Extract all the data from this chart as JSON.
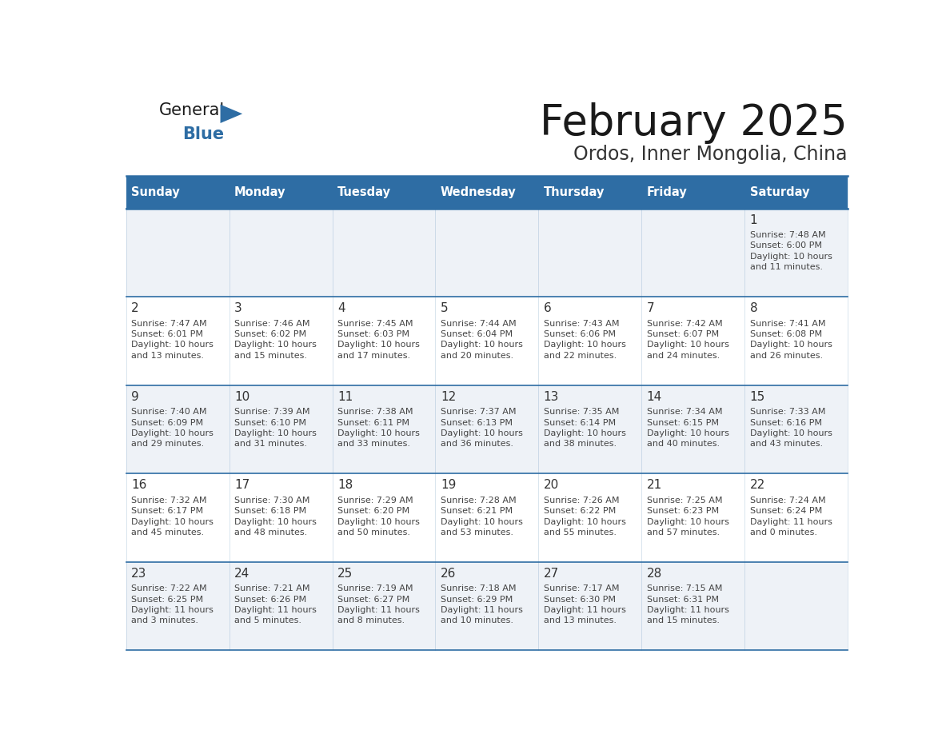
{
  "title": "February 2025",
  "subtitle": "Ordos, Inner Mongolia, China",
  "header_bg": "#2E6DA4",
  "header_text_color": "#FFFFFF",
  "cell_bg_odd": "#EEF2F7",
  "cell_bg_even": "#FFFFFF",
  "grid_line_color": "#2E6DA4",
  "day_headers": [
    "Sunday",
    "Monday",
    "Tuesday",
    "Wednesday",
    "Thursday",
    "Friday",
    "Saturday"
  ],
  "days": [
    {
      "day": 1,
      "col": 6,
      "row": 0,
      "sunrise": "7:48 AM",
      "sunset": "6:00 PM",
      "daylight_line1": "Daylight: 10 hours",
      "daylight_line2": "and 11 minutes."
    },
    {
      "day": 2,
      "col": 0,
      "row": 1,
      "sunrise": "7:47 AM",
      "sunset": "6:01 PM",
      "daylight_line1": "Daylight: 10 hours",
      "daylight_line2": "and 13 minutes."
    },
    {
      "day": 3,
      "col": 1,
      "row": 1,
      "sunrise": "7:46 AM",
      "sunset": "6:02 PM",
      "daylight_line1": "Daylight: 10 hours",
      "daylight_line2": "and 15 minutes."
    },
    {
      "day": 4,
      "col": 2,
      "row": 1,
      "sunrise": "7:45 AM",
      "sunset": "6:03 PM",
      "daylight_line1": "Daylight: 10 hours",
      "daylight_line2": "and 17 minutes."
    },
    {
      "day": 5,
      "col": 3,
      "row": 1,
      "sunrise": "7:44 AM",
      "sunset": "6:04 PM",
      "daylight_line1": "Daylight: 10 hours",
      "daylight_line2": "and 20 minutes."
    },
    {
      "day": 6,
      "col": 4,
      "row": 1,
      "sunrise": "7:43 AM",
      "sunset": "6:06 PM",
      "daylight_line1": "Daylight: 10 hours",
      "daylight_line2": "and 22 minutes."
    },
    {
      "day": 7,
      "col": 5,
      "row": 1,
      "sunrise": "7:42 AM",
      "sunset": "6:07 PM",
      "daylight_line1": "Daylight: 10 hours",
      "daylight_line2": "and 24 minutes."
    },
    {
      "day": 8,
      "col": 6,
      "row": 1,
      "sunrise": "7:41 AM",
      "sunset": "6:08 PM",
      "daylight_line1": "Daylight: 10 hours",
      "daylight_line2": "and 26 minutes."
    },
    {
      "day": 9,
      "col": 0,
      "row": 2,
      "sunrise": "7:40 AM",
      "sunset": "6:09 PM",
      "daylight_line1": "Daylight: 10 hours",
      "daylight_line2": "and 29 minutes."
    },
    {
      "day": 10,
      "col": 1,
      "row": 2,
      "sunrise": "7:39 AM",
      "sunset": "6:10 PM",
      "daylight_line1": "Daylight: 10 hours",
      "daylight_line2": "and 31 minutes."
    },
    {
      "day": 11,
      "col": 2,
      "row": 2,
      "sunrise": "7:38 AM",
      "sunset": "6:11 PM",
      "daylight_line1": "Daylight: 10 hours",
      "daylight_line2": "and 33 minutes."
    },
    {
      "day": 12,
      "col": 3,
      "row": 2,
      "sunrise": "7:37 AM",
      "sunset": "6:13 PM",
      "daylight_line1": "Daylight: 10 hours",
      "daylight_line2": "and 36 minutes."
    },
    {
      "day": 13,
      "col": 4,
      "row": 2,
      "sunrise": "7:35 AM",
      "sunset": "6:14 PM",
      "daylight_line1": "Daylight: 10 hours",
      "daylight_line2": "and 38 minutes."
    },
    {
      "day": 14,
      "col": 5,
      "row": 2,
      "sunrise": "7:34 AM",
      "sunset": "6:15 PM",
      "daylight_line1": "Daylight: 10 hours",
      "daylight_line2": "and 40 minutes."
    },
    {
      "day": 15,
      "col": 6,
      "row": 2,
      "sunrise": "7:33 AM",
      "sunset": "6:16 PM",
      "daylight_line1": "Daylight: 10 hours",
      "daylight_line2": "and 43 minutes."
    },
    {
      "day": 16,
      "col": 0,
      "row": 3,
      "sunrise": "7:32 AM",
      "sunset": "6:17 PM",
      "daylight_line1": "Daylight: 10 hours",
      "daylight_line2": "and 45 minutes."
    },
    {
      "day": 17,
      "col": 1,
      "row": 3,
      "sunrise": "7:30 AM",
      "sunset": "6:18 PM",
      "daylight_line1": "Daylight: 10 hours",
      "daylight_line2": "and 48 minutes."
    },
    {
      "day": 18,
      "col": 2,
      "row": 3,
      "sunrise": "7:29 AM",
      "sunset": "6:20 PM",
      "daylight_line1": "Daylight: 10 hours",
      "daylight_line2": "and 50 minutes."
    },
    {
      "day": 19,
      "col": 3,
      "row": 3,
      "sunrise": "7:28 AM",
      "sunset": "6:21 PM",
      "daylight_line1": "Daylight: 10 hours",
      "daylight_line2": "and 53 minutes."
    },
    {
      "day": 20,
      "col": 4,
      "row": 3,
      "sunrise": "7:26 AM",
      "sunset": "6:22 PM",
      "daylight_line1": "Daylight: 10 hours",
      "daylight_line2": "and 55 minutes."
    },
    {
      "day": 21,
      "col": 5,
      "row": 3,
      "sunrise": "7:25 AM",
      "sunset": "6:23 PM",
      "daylight_line1": "Daylight: 10 hours",
      "daylight_line2": "and 57 minutes."
    },
    {
      "day": 22,
      "col": 6,
      "row": 3,
      "sunrise": "7:24 AM",
      "sunset": "6:24 PM",
      "daylight_line1": "Daylight: 11 hours",
      "daylight_line2": "and 0 minutes."
    },
    {
      "day": 23,
      "col": 0,
      "row": 4,
      "sunrise": "7:22 AM",
      "sunset": "6:25 PM",
      "daylight_line1": "Daylight: 11 hours",
      "daylight_line2": "and 3 minutes."
    },
    {
      "day": 24,
      "col": 1,
      "row": 4,
      "sunrise": "7:21 AM",
      "sunset": "6:26 PM",
      "daylight_line1": "Daylight: 11 hours",
      "daylight_line2": "and 5 minutes."
    },
    {
      "day": 25,
      "col": 2,
      "row": 4,
      "sunrise": "7:19 AM",
      "sunset": "6:27 PM",
      "daylight_line1": "Daylight: 11 hours",
      "daylight_line2": "and 8 minutes."
    },
    {
      "day": 26,
      "col": 3,
      "row": 4,
      "sunrise": "7:18 AM",
      "sunset": "6:29 PM",
      "daylight_line1": "Daylight: 11 hours",
      "daylight_line2": "and 10 minutes."
    },
    {
      "day": 27,
      "col": 4,
      "row": 4,
      "sunrise": "7:17 AM",
      "sunset": "6:30 PM",
      "daylight_line1": "Daylight: 11 hours",
      "daylight_line2": "and 13 minutes."
    },
    {
      "day": 28,
      "col": 5,
      "row": 4,
      "sunrise": "7:15 AM",
      "sunset": "6:31 PM",
      "daylight_line1": "Daylight: 11 hours",
      "daylight_line2": "and 15 minutes."
    }
  ],
  "num_rows": 5,
  "num_cols": 7,
  "logo_text_general": "General",
  "logo_text_blue": "Blue",
  "logo_color_general": "#1a1a1a",
  "logo_color_blue": "#2E6DA4",
  "logo_triangle_color": "#2E6DA4"
}
